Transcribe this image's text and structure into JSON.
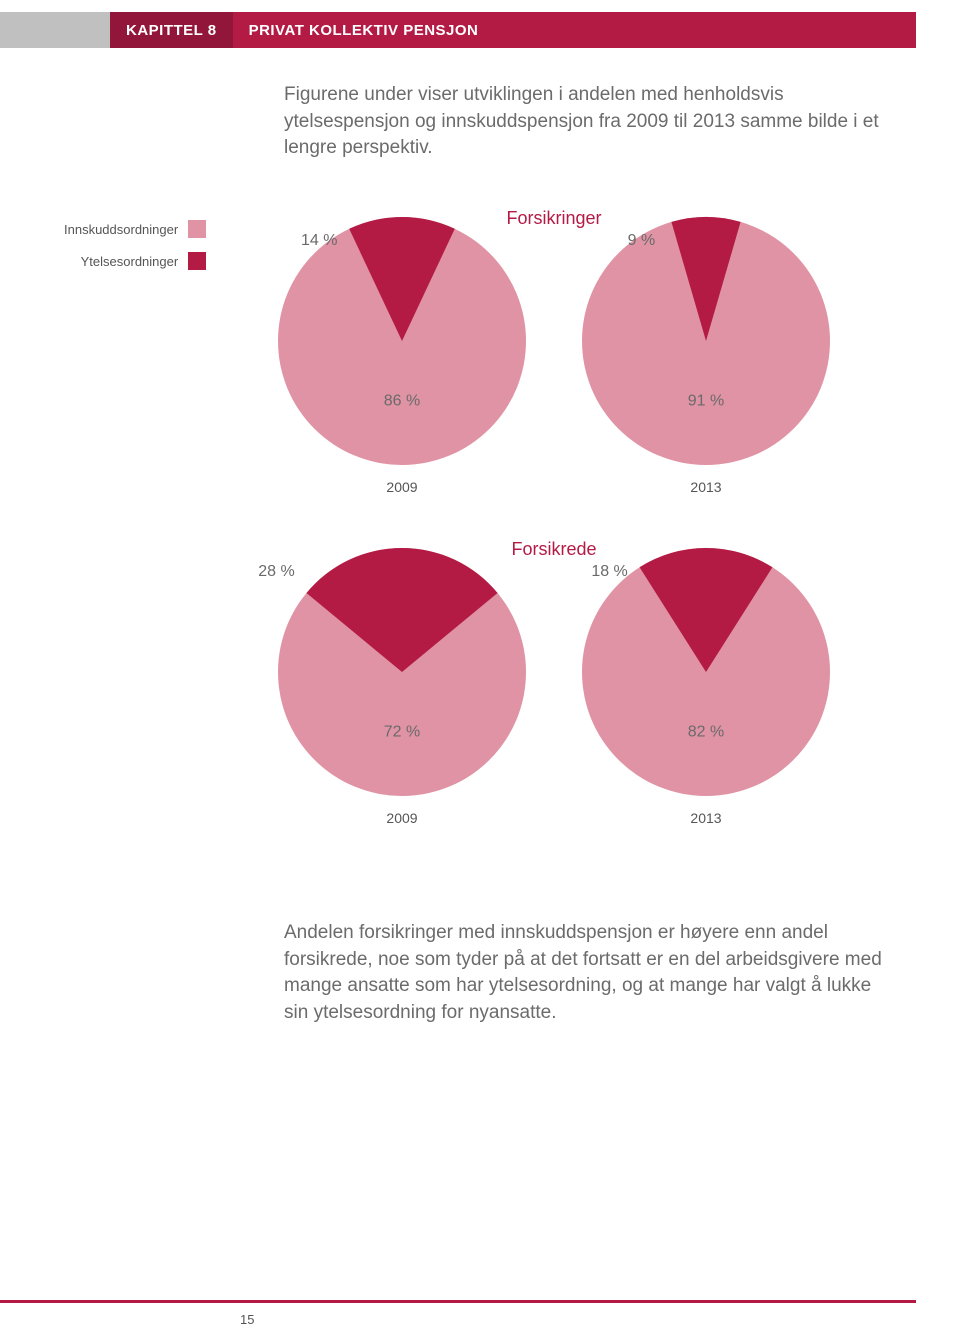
{
  "header": {
    "chapter_label": "KAPITTEL 8",
    "title": "PRIVAT KOLLEKTIV PENSJON",
    "chapter_bg": "#911639",
    "title_bg": "#b31b45"
  },
  "intro_text": "Figurene under viser utviklingen i andelen med henholdsvis ytelsespensjon og innskuddspensjon fra 2009 til 2013 samme bilde i et lengre perspektiv.",
  "legend": {
    "items": [
      {
        "label": "Innskuddsordninger",
        "color": "#e093a4"
      },
      {
        "label": "Ytelsesordninger",
        "color": "#b31b45"
      }
    ]
  },
  "section1": {
    "title": "Forsikringer",
    "title_color": "#b31b45",
    "charts": [
      {
        "year": "2009",
        "slices": [
          {
            "label": "14 %",
            "value": 14,
            "color": "#b31b45"
          },
          {
            "label": "86 %",
            "value": 86,
            "color": "#e093a4"
          }
        ]
      },
      {
        "year": "2013",
        "slices": [
          {
            "label": "9 %",
            "value": 9,
            "color": "#b31b45"
          },
          {
            "label": "91 %",
            "value": 91,
            "color": "#e093a4"
          }
        ]
      }
    ]
  },
  "section2": {
    "title": "Forsikrede",
    "title_color": "#b31b45",
    "charts": [
      {
        "year": "2009",
        "slices": [
          {
            "label": "28 %",
            "value": 28,
            "color": "#b31b45"
          },
          {
            "label": "72 %",
            "value": 72,
            "color": "#e093a4"
          }
        ]
      },
      {
        "year": "2013",
        "slices": [
          {
            "label": "18 %",
            "value": 18,
            "color": "#b31b45"
          },
          {
            "label": "82 %",
            "value": 82,
            "color": "#e093a4"
          }
        ]
      }
    ]
  },
  "body_text": "Andelen forsikringer med innskuddspensjon er høyere enn andel forsikrede, noe som tyder på at det fortsatt er en del arbeidsgivere med mange ansatte som har ytelsesordning, og at mange har valgt å lukke sin ytelsesordning for nyansatte.",
  "footer": {
    "page_number": "15",
    "line_color": "#b31b45"
  },
  "chart_style": {
    "radius": 124,
    "bg": "#ffffff"
  }
}
